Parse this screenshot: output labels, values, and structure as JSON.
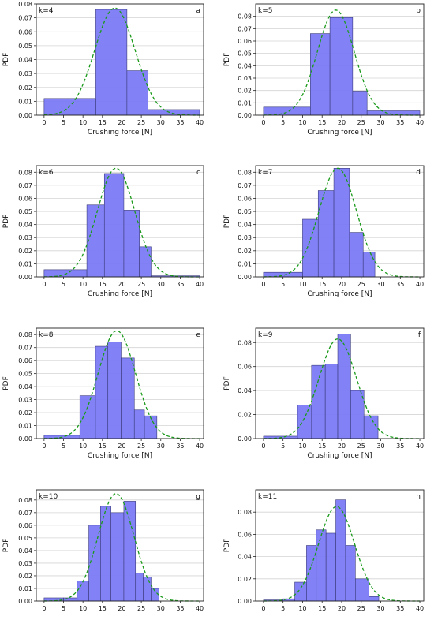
{
  "chart_data": [
    {
      "type": "bar",
      "title": "",
      "xlabel": "Crushing force [N]",
      "ylabel": "PDF",
      "panel_label": "a",
      "k_label": "k=4",
      "xlim": [
        -2,
        41
      ],
      "ylim": [
        0,
        0.08
      ],
      "xticks": [
        0,
        5,
        10,
        15,
        20,
        25,
        30,
        35,
        40
      ],
      "yticks": [
        0.0,
        0.01,
        0.02,
        0.03,
        0.04,
        0.05,
        0.06,
        0.07,
        0.08
      ],
      "ytick_labels": [
        "0.00",
        "0.01",
        "0.02",
        "0.03",
        "0.04",
        "0.05",
        "0.06",
        "0.07",
        "0.08"
      ],
      "grid": "horizontal",
      "bins": [
        {
          "x0": 0,
          "x1": 13.3,
          "value": 0.012
        },
        {
          "x0": 13.3,
          "x1": 21.3,
          "value": 0.076
        },
        {
          "x0": 21.3,
          "x1": 26.7,
          "value": 0.032
        },
        {
          "x0": 26.7,
          "x1": 40,
          "value": 0.004
        }
      ],
      "fit": {
        "mean": 18.2,
        "std": 5.2,
        "peak": 0.077
      }
    },
    {
      "type": "bar",
      "title": "",
      "xlabel": "Crushing force [N]",
      "ylabel": "PDF",
      "panel_label": "b",
      "k_label": "k=5",
      "xlim": [
        -2,
        41
      ],
      "ylim": [
        0,
        0.09
      ],
      "xticks": [
        0,
        5,
        10,
        15,
        20,
        25,
        30,
        35,
        40
      ],
      "yticks": [
        0.0,
        0.01,
        0.02,
        0.03,
        0.04,
        0.05,
        0.06,
        0.07,
        0.08
      ],
      "ytick_labels": [
        "0.00",
        "0.01",
        "0.02",
        "0.03",
        "0.04",
        "0.05",
        "0.06",
        "0.07",
        "0.08"
      ],
      "grid": "horizontal",
      "bins": [
        {
          "x0": 0,
          "x1": 12,
          "value": 0.0065
        },
        {
          "x0": 12,
          "x1": 17,
          "value": 0.066
        },
        {
          "x0": 17,
          "x1": 22.8,
          "value": 0.079
        },
        {
          "x0": 22.8,
          "x1": 26.5,
          "value": 0.0195
        },
        {
          "x0": 26.5,
          "x1": 40,
          "value": 0.0035
        }
      ],
      "fit": {
        "mean": 18.5,
        "std": 4.7,
        "peak": 0.085
      }
    },
    {
      "type": "bar",
      "title": "",
      "xlabel": "Crushing force [N]",
      "ylabel": "PDF",
      "panel_label": "c",
      "k_label": "k=6",
      "xlim": [
        -2,
        41
      ],
      "ylim": [
        0,
        0.085
      ],
      "xticks": [
        0,
        5,
        10,
        15,
        20,
        25,
        30,
        35,
        40
      ],
      "yticks": [
        0.0,
        0.01,
        0.02,
        0.03,
        0.04,
        0.05,
        0.06,
        0.07,
        0.08
      ],
      "ytick_labels": [
        "0.00",
        "0.01",
        "0.02",
        "0.03",
        "0.04",
        "0.05",
        "0.06",
        "0.07",
        "0.08"
      ],
      "grid": "horizontal",
      "bins": [
        {
          "x0": 0,
          "x1": 11,
          "value": 0.0055
        },
        {
          "x0": 11,
          "x1": 15.5,
          "value": 0.055
        },
        {
          "x0": 15.5,
          "x1": 20.5,
          "value": 0.079
        },
        {
          "x0": 20.5,
          "x1": 24.5,
          "value": 0.051
        },
        {
          "x0": 24.5,
          "x1": 27.5,
          "value": 0.023
        },
        {
          "x0": 27.5,
          "x1": 40,
          "value": 0.0008
        }
      ],
      "fit": {
        "mean": 18.5,
        "std": 4.8,
        "peak": 0.083
      }
    },
    {
      "type": "bar",
      "title": "",
      "xlabel": "Crushing force [N]",
      "ylabel": "PDF",
      "panel_label": "d",
      "k_label": "k=7",
      "xlim": [
        -2,
        41
      ],
      "ylim": [
        0,
        0.085
      ],
      "xticks": [
        0,
        5,
        10,
        15,
        20,
        25,
        30,
        35,
        40
      ],
      "yticks": [
        0.0,
        0.01,
        0.02,
        0.03,
        0.04,
        0.05,
        0.06,
        0.07,
        0.08
      ],
      "ytick_labels": [
        "0.00",
        "0.01",
        "0.02",
        "0.03",
        "0.04",
        "0.05",
        "0.06",
        "0.07",
        "0.08"
      ],
      "grid": "horizontal",
      "bins": [
        {
          "x0": 0,
          "x1": 10,
          "value": 0.0035
        },
        {
          "x0": 10,
          "x1": 14,
          "value": 0.044
        },
        {
          "x0": 14,
          "x1": 18,
          "value": 0.066
        },
        {
          "x0": 18,
          "x1": 22,
          "value": 0.083
        },
        {
          "x0": 22,
          "x1": 25.5,
          "value": 0.034
        },
        {
          "x0": 25.5,
          "x1": 28.5,
          "value": 0.019
        }
      ],
      "fit": {
        "mean": 19.0,
        "std": 4.8,
        "peak": 0.083
      }
    },
    {
      "type": "bar",
      "title": "",
      "xlabel": "Crushing force [N]",
      "ylabel": "PDF",
      "panel_label": "e",
      "k_label": "k=8",
      "xlim": [
        -2,
        41
      ],
      "ylim": [
        0,
        0.085
      ],
      "xticks": [
        0,
        5,
        10,
        15,
        20,
        25,
        30,
        35,
        40
      ],
      "yticks": [
        0.0,
        0.01,
        0.02,
        0.03,
        0.04,
        0.05,
        0.06,
        0.07,
        0.08
      ],
      "ytick_labels": [
        "0.00",
        "0.01",
        "0.02",
        "0.03",
        "0.04",
        "0.05",
        "0.06",
        "0.07",
        "0.08"
      ],
      "grid": "horizontal",
      "bins": [
        {
          "x0": 0,
          "x1": 9.2,
          "value": 0.0025
        },
        {
          "x0": 9.2,
          "x1": 13.2,
          "value": 0.033
        },
        {
          "x0": 13.2,
          "x1": 16.4,
          "value": 0.071
        },
        {
          "x0": 16.4,
          "x1": 19.8,
          "value": 0.0745
        },
        {
          "x0": 19.8,
          "x1": 23.2,
          "value": 0.062
        },
        {
          "x0": 23.2,
          "x1": 25.8,
          "value": 0.022
        },
        {
          "x0": 25.8,
          "x1": 29,
          "value": 0.0175
        }
      ],
      "fit": {
        "mean": 18.7,
        "std": 4.8,
        "peak": 0.083
      }
    },
    {
      "type": "bar",
      "title": "",
      "xlabel": "Crushing force [N]",
      "ylabel": "PDF",
      "panel_label": "f",
      "k_label": "k=9",
      "xlim": [
        -2,
        41
      ],
      "ylim": [
        0,
        0.092
      ],
      "xticks": [
        0,
        5,
        10,
        15,
        20,
        25,
        30,
        35,
        40
      ],
      "yticks": [
        0.0,
        0.02,
        0.04,
        0.06,
        0.08
      ],
      "ytick_labels": [
        "0.00",
        "0.02",
        "0.04",
        "0.06",
        "0.08"
      ],
      "grid": "horizontal",
      "bins": [
        {
          "x0": 0,
          "x1": 8.7,
          "value": 0.002
        },
        {
          "x0": 8.7,
          "x1": 12.3,
          "value": 0.028
        },
        {
          "x0": 12.3,
          "x1": 15.8,
          "value": 0.061
        },
        {
          "x0": 15.8,
          "x1": 19,
          "value": 0.062
        },
        {
          "x0": 19,
          "x1": 22.3,
          "value": 0.087
        },
        {
          "x0": 22.3,
          "x1": 25.7,
          "value": 0.04
        },
        {
          "x0": 25.7,
          "x1": 29.3,
          "value": 0.019
        }
      ],
      "fit": {
        "mean": 19.0,
        "std": 4.8,
        "peak": 0.083
      }
    },
    {
      "type": "bar",
      "title": "",
      "xlabel": "",
      "ylabel": "PDF",
      "panel_label": "g",
      "k_label": "k=10",
      "xlim": [
        -2,
        41
      ],
      "ylim": [
        0,
        0.088
      ],
      "xticks": [
        0,
        5,
        10,
        15,
        20,
        25,
        30,
        35,
        40
      ],
      "yticks": [
        0.0,
        0.01,
        0.02,
        0.03,
        0.04,
        0.05,
        0.06,
        0.07,
        0.08
      ],
      "ytick_labels": [
        "0.00",
        "0.01",
        "0.02",
        "0.03",
        "0.04",
        "0.05",
        "0.06",
        "0.07",
        "0.08"
      ],
      "grid": "horizontal",
      "bins": [
        {
          "x0": 0,
          "x1": 5,
          "value": 0.0025
        },
        {
          "x0": 5,
          "x1": 8.5,
          "value": 0.0025
        },
        {
          "x0": 8.5,
          "x1": 11.5,
          "value": 0.016
        },
        {
          "x0": 11.5,
          "x1": 14.5,
          "value": 0.06
        },
        {
          "x0": 14.5,
          "x1": 17.2,
          "value": 0.075
        },
        {
          "x0": 17.2,
          "x1": 20.5,
          "value": 0.07
        },
        {
          "x0": 20.5,
          "x1": 23.5,
          "value": 0.079
        },
        {
          "x0": 23.5,
          "x1": 25.5,
          "value": 0.022
        },
        {
          "x0": 25.5,
          "x1": 27.5,
          "value": 0.019
        },
        {
          "x0": 27.5,
          "x1": 29.5,
          "value": 0.01
        }
      ],
      "fit": {
        "mean": 18.5,
        "std": 4.6,
        "peak": 0.085
      }
    },
    {
      "type": "bar",
      "title": "",
      "xlabel": "",
      "ylabel": "PDF",
      "panel_label": "h",
      "k_label": "k=11",
      "xlim": [
        -2,
        41
      ],
      "ylim": [
        0,
        0.1
      ],
      "xticks": [
        0,
        5,
        10,
        15,
        20,
        25,
        30,
        35,
        40
      ],
      "yticks": [
        0.0,
        0.02,
        0.04,
        0.06,
        0.08
      ],
      "ytick_labels": [
        "0.00",
        "0.02",
        "0.04",
        "0.06",
        "0.08"
      ],
      "grid": "horizontal",
      "bins": [
        {
          "x0": 0,
          "x1": 5,
          "value": 0.001
        },
        {
          "x0": 5,
          "x1": 8,
          "value": 0.002
        },
        {
          "x0": 8,
          "x1": 11,
          "value": 0.017
        },
        {
          "x0": 11,
          "x1": 13.5,
          "value": 0.05
        },
        {
          "x0": 13.5,
          "x1": 16,
          "value": 0.064
        },
        {
          "x0": 16,
          "x1": 18.5,
          "value": 0.061
        },
        {
          "x0": 18.5,
          "x1": 21,
          "value": 0.091
        },
        {
          "x0": 21,
          "x1": 23.5,
          "value": 0.05
        },
        {
          "x0": 23.5,
          "x1": 27,
          "value": 0.02
        },
        {
          "x0": 27,
          "x1": 29.5,
          "value": 0.004
        }
      ],
      "fit": {
        "mean": 18.7,
        "std": 4.6,
        "peak": 0.085
      }
    }
  ],
  "colors": {
    "bar_fill": "#7b7bf5",
    "bar_edge": "#3a3a7a",
    "fit_line": "#1a9a1a",
    "grid": "#d4d4d4",
    "axis": "#222222",
    "text": "#111111"
  }
}
